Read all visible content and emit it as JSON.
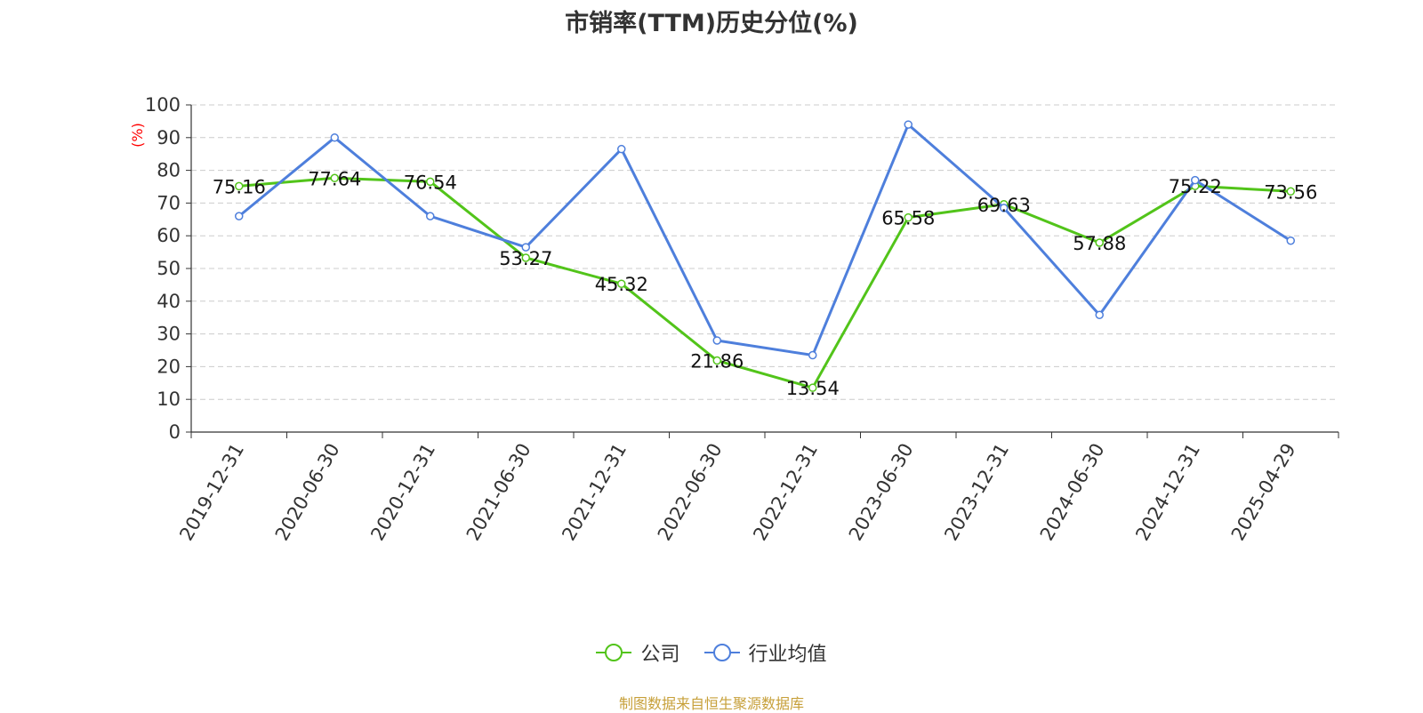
{
  "chart_data": {
    "type": "line",
    "title": "市销率(TTM)历史分位(%)",
    "ylabel": "(%)",
    "xlabel": "",
    "categories": [
      "2019-12-31",
      "2020-06-30",
      "2020-12-31",
      "2021-06-30",
      "2021-12-31",
      "2022-06-30",
      "2022-12-31",
      "2023-06-30",
      "2023-12-31",
      "2024-06-30",
      "2024-12-31",
      "2025-04-29"
    ],
    "ylim": [
      0,
      100
    ],
    "yticks": [
      0,
      10,
      20,
      30,
      40,
      50,
      60,
      70,
      80,
      90,
      100
    ],
    "grid": true,
    "legend_position": "bottom-center",
    "series": [
      {
        "name": "公司",
        "color": "#52c41a",
        "show_labels": true,
        "values": [
          75.16,
          77.64,
          76.54,
          53.27,
          45.32,
          21.86,
          13.54,
          65.58,
          69.63,
          57.88,
          75.22,
          73.56
        ]
      },
      {
        "name": "行业均值",
        "color": "#4e7fdc",
        "show_labels": false,
        "values": [
          66.0,
          90.0,
          66.0,
          56.5,
          86.5,
          28.0,
          23.5,
          94.0,
          68.5,
          35.8,
          77.0,
          58.5
        ]
      }
    ]
  },
  "source_note": "制图数据来自恒生聚源数据库"
}
